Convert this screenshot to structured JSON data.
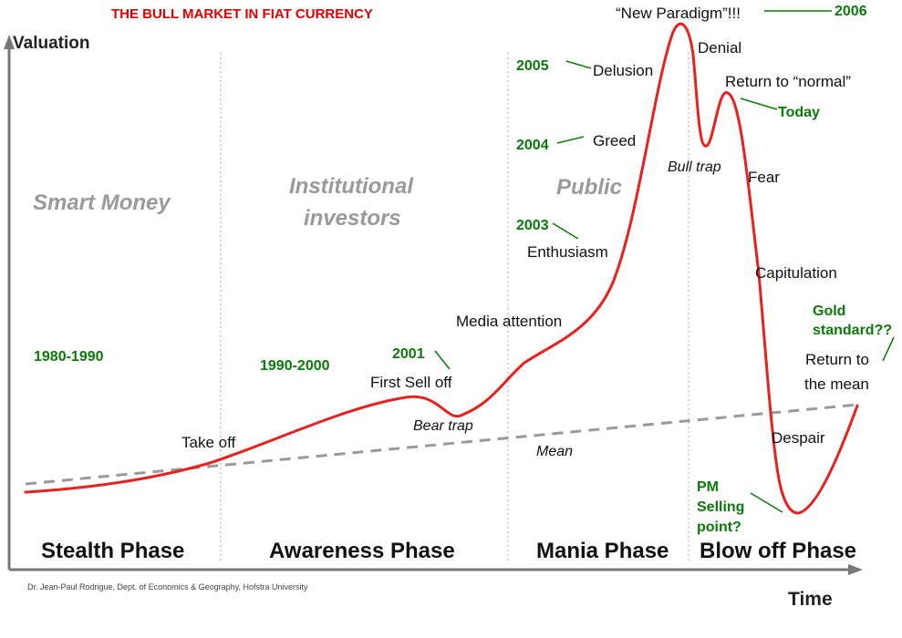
{
  "title": "THE BULL MARKET IN FIAT CURRENCY",
  "y_axis_label": "Valuation",
  "x_axis_label": "Time",
  "credit": "Dr. Jean-Paul Rodrigue, Dept. of Economics & Geography, Hofstra University",
  "investor_groups": [
    "Smart Money",
    "Institutional",
    "investors",
    "Public"
  ],
  "phases": [
    "Stealth Phase",
    "Awareness Phase",
    "Mania Phase",
    "Blow off Phase"
  ],
  "curve_labels": {
    "take_off": "Take off",
    "first_sell_off": "First Sell off",
    "bear_trap": "Bear trap",
    "mean": "Mean",
    "media_attention": "Media attention",
    "enthusiasm": "Enthusiasm",
    "greed": "Greed",
    "delusion": "Delusion",
    "new_paradigm": "“New Paradigm”!!!",
    "denial": "Denial",
    "bull_trap": "Bull trap",
    "return_to_normal": "Return to “normal”",
    "fear": "Fear",
    "capitulation": "Capitulation",
    "despair": "Despair",
    "return_to": "Return to",
    "the_mean": "the mean"
  },
  "annotations": {
    "y1980_1990": "1980-1990",
    "y1990_2000": "1990-2000",
    "y2001": "2001",
    "y2003": "2003",
    "y2004": "2004",
    "y2005": "2005",
    "y2006": "2006",
    "today": "Today",
    "gold_line1": "Gold",
    "gold_line2": "standard??",
    "pm_line1": "PM",
    "pm_line2": "Selling",
    "pm_line3": "point?"
  },
  "colors": {
    "title": "#e00000",
    "curve": "#e8201e",
    "mean_line": "#999999",
    "annotation": "#0a7a0a",
    "axis": "#777777",
    "divider": "#aaaaaa"
  }
}
